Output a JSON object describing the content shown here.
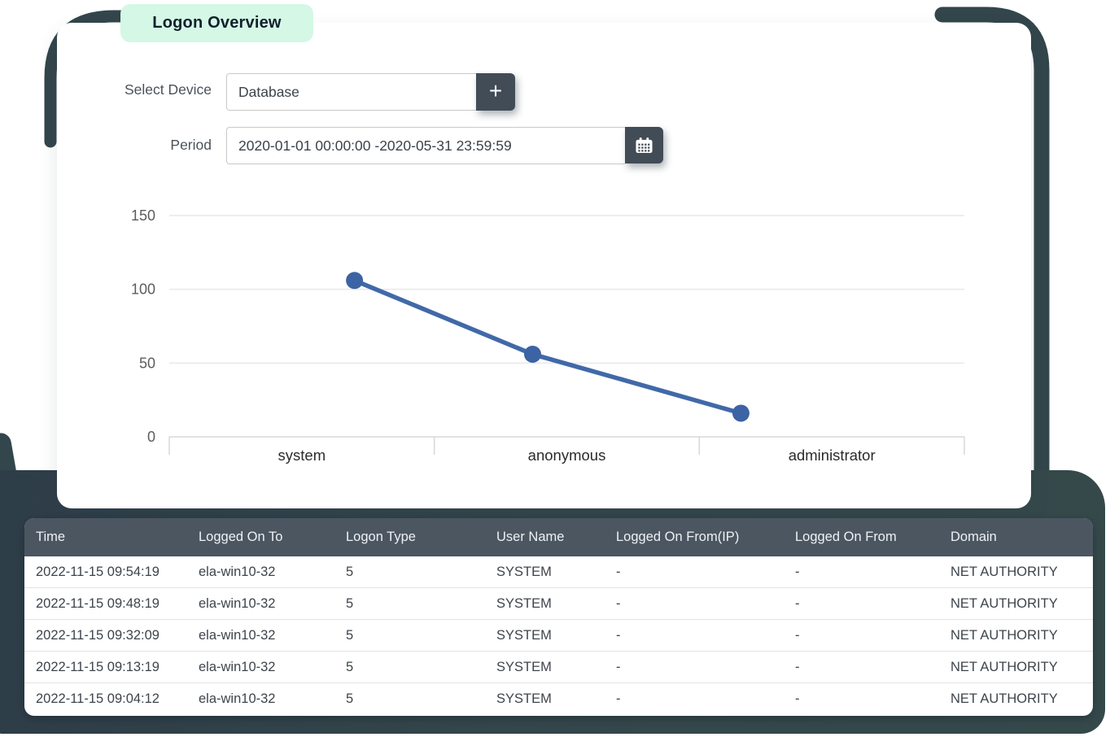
{
  "badge": {
    "label": "Logon Overview"
  },
  "filters": {
    "device": {
      "label": "Select Device",
      "value": "Database",
      "add_button_glyph": "+"
    },
    "period": {
      "label": "Period",
      "value": "2020-01-01 00:00:00 -2020-05-31 23:59:59"
    }
  },
  "chart_data": {
    "type": "line",
    "categories": [
      "system",
      "anonymous",
      "administrator"
    ],
    "values": [
      106,
      56,
      16
    ],
    "yticks": [
      0,
      50,
      100,
      150
    ],
    "ylim": [
      0,
      150
    ],
    "grid": true,
    "legend": "none",
    "line_color": "#4169a8",
    "point_color": "#3c63a3"
  },
  "table": {
    "columns": [
      "Time",
      "Logged On To",
      "Logon Type",
      "User Name",
      "Logged On From(IP)",
      "Logged On From",
      "Domain"
    ],
    "rows": [
      [
        "2022-11-15 09:54:19",
        "ela-win10-32",
        "5",
        "SYSTEM",
        "-",
        "-",
        "NET AUTHORITY"
      ],
      [
        "2022-11-15 09:48:19",
        "ela-win10-32",
        "5",
        "SYSTEM",
        "-",
        "-",
        "NET AUTHORITY"
      ],
      [
        "2022-11-15 09:32:09",
        "ela-win10-32",
        "5",
        "SYSTEM",
        "-",
        "-",
        "NET AUTHORITY"
      ],
      [
        "2022-11-15 09:13:19",
        "ela-win10-32",
        "5",
        "SYSTEM",
        "-",
        "-",
        "NET AUTHORITY"
      ],
      [
        "2022-11-15 09:04:12",
        "ela-win10-32",
        "5",
        "SYSTEM",
        "-",
        "-",
        "NET AUTHORITY"
      ]
    ]
  },
  "colors": {
    "badge_bg": "#d5f7e6",
    "panel_dark": "#33464b",
    "header_bg": "#4b5661",
    "button_bg": "#414c57",
    "accent_line": "#4169a8"
  }
}
